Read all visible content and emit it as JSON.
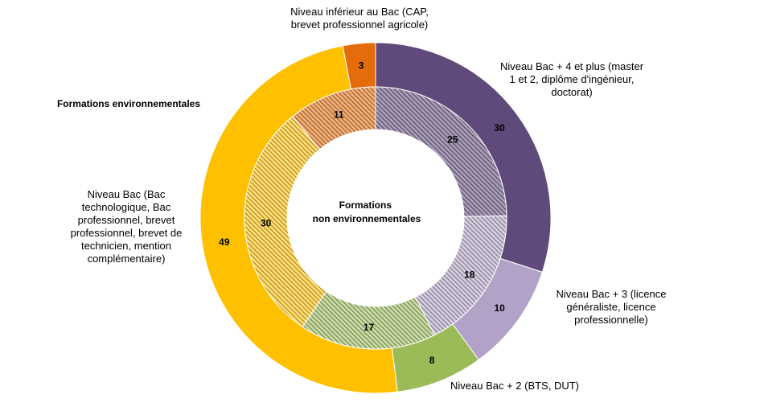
{
  "chart_data": {
    "type": "pie",
    "variant": "double-donut",
    "title": "",
    "outer_ring_label": "Formations environnementales",
    "inner_ring_label": "Formations non environnementales",
    "categories": [
      "Niveau Bac + 4 et plus (master 1 et 2, diplôme d'ingénieur, doctorat)",
      "Niveau Bac + 3 (licence généraliste, licence professionnelle)",
      "Niveau Bac + 2 (BTS, DUT)",
      "Niveau Bac (Bac technologique, Bac professionnel, brevet professionnel, brevet de technicien, mention complémentaire)",
      "Niveau inférieur au Bac (CAP, brevet professionnel agricole)"
    ],
    "category_label_lines": [
      [
        "Niveau Bac + 4 et plus (master",
        "1 et 2, diplôme d'ingénieur,",
        "doctorat)"
      ],
      [
        "Niveau Bac + 3 (licence",
        "généraliste, licence",
        "professionnelle)"
      ],
      [
        "Niveau Bac + 2 (BTS, DUT)"
      ],
      [
        "Niveau Bac (Bac",
        "technologique, Bac",
        "professionnel, brevet",
        "professionnel, brevet de",
        "technicien, mention",
        "complémentaire)"
      ],
      [
        "Niveau inférieur au Bac (CAP,",
        "brevet professionnel agricole)"
      ]
    ],
    "colors": [
      "#604a7b",
      "#b3a2c7",
      "#9bbb59",
      "#ffc000",
      "#e46c0a"
    ],
    "series": [
      {
        "name": "Formations environnementales",
        "ring": "outer",
        "values": [
          30,
          10,
          8,
          49,
          3
        ]
      },
      {
        "name": "Formations non environnementales",
        "ring": "inner",
        "values": [
          25,
          18,
          17,
          30,
          11
        ]
      }
    ],
    "unit": "%"
  }
}
